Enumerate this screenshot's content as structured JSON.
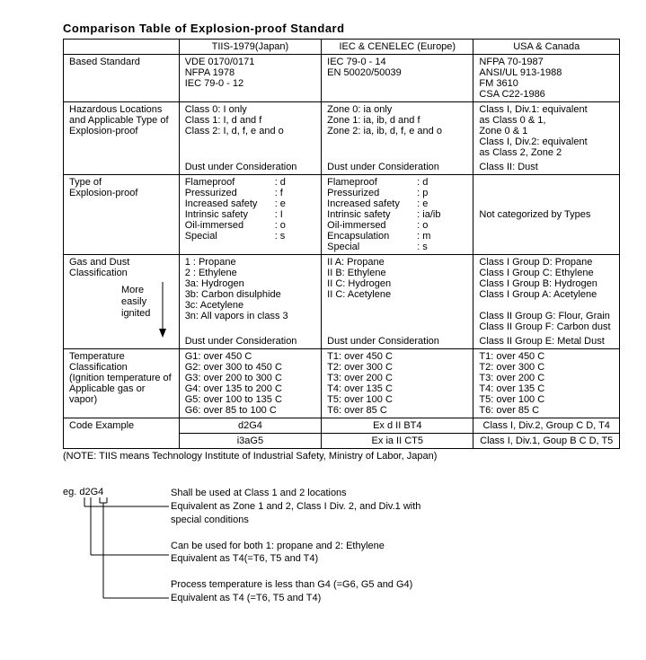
{
  "title": "Comparison Table of Explosion-proof Standard",
  "headers": {
    "c1": "TIIS-1979(Japan)",
    "c2": "IEC & CENELEC (Europe)",
    "c3": "USA & Canada"
  },
  "rows": {
    "based": {
      "label": "Based Standard",
      "c1": "VDE 0170/0171\nNFPA 1978\nIEC 79-0 - 12",
      "c2": "IEC 79-0 - 14\nEN 50020/50039",
      "c3": "NFPA 70-1987\nANSI/UL 913-1988\nFM 3610\nCSA C22-1986"
    },
    "hazloc": {
      "label": "Hazardous Locations and Applicable Type of Explosion-proof",
      "c1": "Class 0: I only\nClass 1: I, d and f\nClass 2: I, d, f, e and o",
      "c2": "Zone 0: ia only\nZone 1: ia, ib, d and f\nZone 2: ia, ib, d, f, e and o",
      "c3": "Class I, Div.1: equivalent\nas Class 0 & 1,\nZone 0 & 1\nClass I, Div.2: equivalent\nas Class 2, Zone 2",
      "c1b": "Dust under Consideration",
      "c2b": "Dust under Consideration",
      "c3b": "Class II: Dust"
    },
    "type": {
      "label": "Type of\nExplosion-proof",
      "c1": [
        [
          "Flameproof",
          ": d"
        ],
        [
          "Pressurized",
          ": f"
        ],
        [
          "Increased safety",
          ": e"
        ],
        [
          "Intrinsic safety",
          ": I"
        ],
        [
          "Oil-immersed",
          ": o"
        ],
        [
          "Special",
          ": s"
        ]
      ],
      "c2": [
        [
          "Flameproof",
          ": d"
        ],
        [
          "Pressurized",
          ": p"
        ],
        [
          "Increased safety",
          ": e"
        ],
        [
          "Intrinsic safety",
          ": ia/ib"
        ],
        [
          "Oil-immersed",
          ": o"
        ],
        [
          "Encapsulation",
          ": m"
        ],
        [
          "Special",
          ": s"
        ]
      ],
      "c3": "Not categorized by Types"
    },
    "gas": {
      "label": "Gas and Dust\nClassification",
      "arrow_label": "More\neasily\nignited",
      "c1": "1 : Propane\n2 : Ethylene\n3a: Hydrogen\n3b: Carbon disulphide\n3c: Acetylene\n3n: All vapors in class 3",
      "c2": "II A: Propane\nII B: Ethylene\nII C: Hydrogen\nII C: Acetylene",
      "c3": "Class I Group D: Propane\nClass I Group C: Ethylene\nClass I Group B: Hydrogen\nClass I Group A: Acetylene\n\nClass II Group G: Flour, Grain\nClass II Group F: Carbon dust",
      "c1b": "Dust under Consideration",
      "c2b": "Dust under Consideration",
      "c3b": "Class II Group E: Metal Dust"
    },
    "temp": {
      "label": "Temperature\nClassification\n(Ignition temperature of Applicable gas or vapor)",
      "c1": "G1: over 450 C\nG2: over 300 to 450 C\nG3: over 200 to 300 C\nG4: over 135 to 200 C\nG5: over 100 to 135 C\nG6: over 85 to 100 C",
      "c2": "T1: over 450 C\nT2: over 300 C\nT3: over 200 C\nT4: over 135 C\nT5: over 100 C\nT6: over 85 C",
      "c3": "T1: over 450 C\nT2: over 300 C\nT3: over 200 C\nT4: over 135 C\nT5: over 100 C\nT6: over 85 C"
    },
    "code": {
      "label": "Code Example",
      "r1c1": "d2G4",
      "r1c2": "Ex d II BT4",
      "r1c3": "Class I, Div.2, Group C D, T4",
      "r2c1": "i3aG5",
      "r2c2": "Ex ia II CT5",
      "r2c3": "Class I, Div.1, Goup B C D, T5"
    }
  },
  "note": "(NOTE: TIIS means Technology Institute of Industrial Safety, Ministry of Labor, Japan)",
  "example": {
    "label": "eg. d2G4",
    "lines": [
      "Shall be used at Class 1 and 2 locations\nEquivalent as Zone 1 and 2, Class I Div. 2, and Div.1 with\nspecial conditions",
      "Can be used for both 1: propane and 2: Ethylene\nEquivalent as T4(=T6, T5 and T4)",
      "Process temperature is less than G4 (=G6, G5 and G4)\nEquivalent as T4 (=T6, T5 and T4)"
    ]
  }
}
